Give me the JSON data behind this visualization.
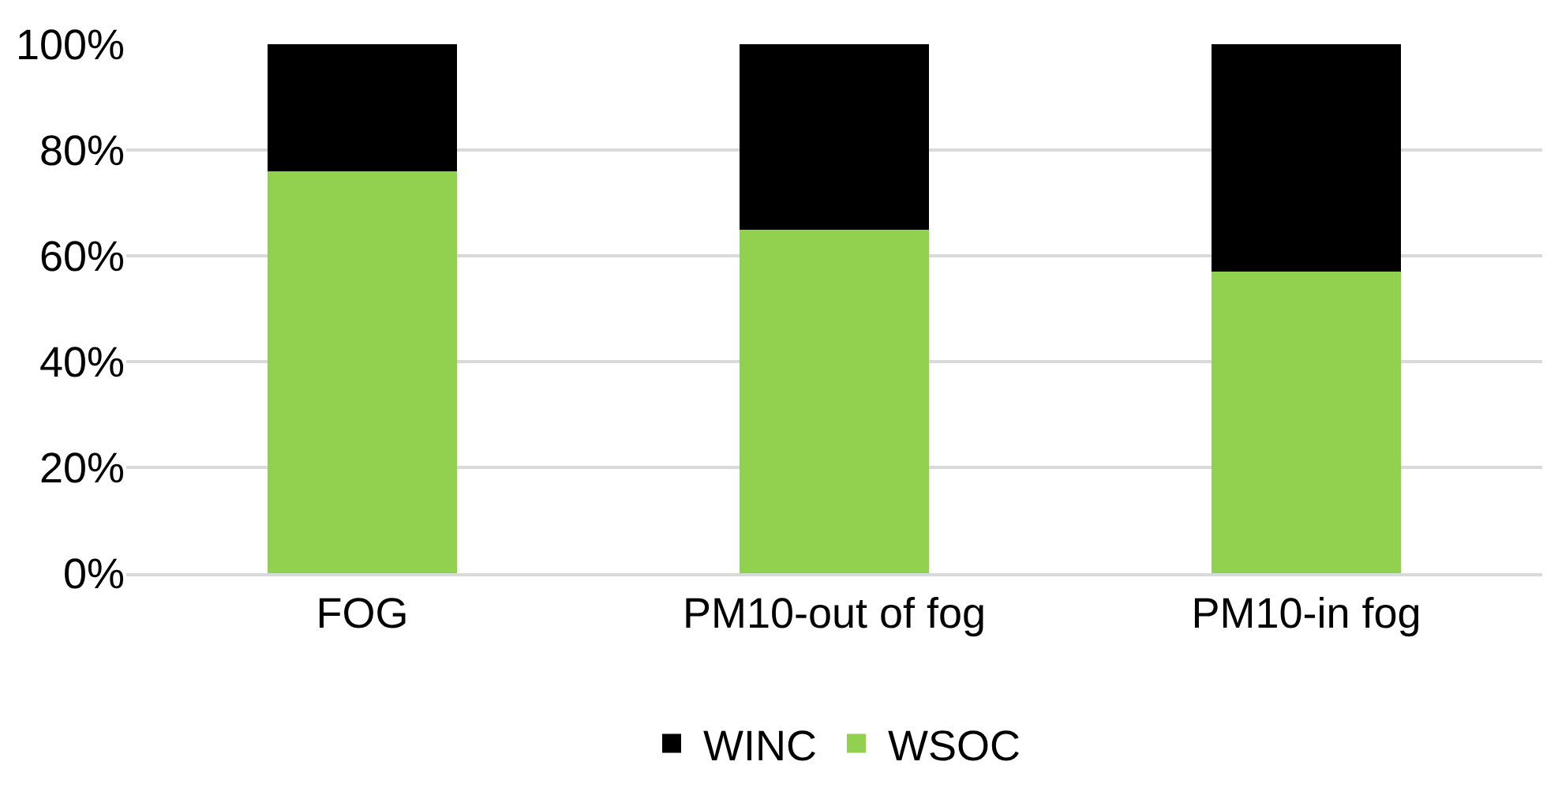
{
  "chart_data": {
    "type": "bar",
    "stacked": true,
    "categories": [
      "FOG",
      "PM10-out of fog",
      "PM10-in fog"
    ],
    "series": [
      {
        "name": "WSOC",
        "color": "#92d050",
        "values": [
          76,
          65,
          57
        ]
      },
      {
        "name": "WINC",
        "color": "#000000",
        "values": [
          24,
          35,
          43
        ]
      }
    ],
    "ylim": [
      0,
      100
    ],
    "yticks": [
      {
        "value": 0,
        "label": "0%"
      },
      {
        "value": 20,
        "label": "20%"
      },
      {
        "value": 40,
        "label": "40%"
      },
      {
        "value": 60,
        "label": "60%"
      },
      {
        "value": 80,
        "label": "80%"
      },
      {
        "value": 100,
        "label": "100%"
      }
    ],
    "grid": "y",
    "legend": "bottom"
  }
}
